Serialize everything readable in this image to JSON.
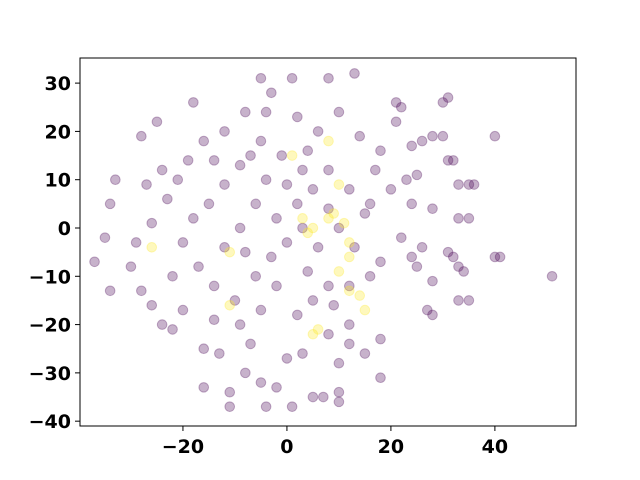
{
  "chart_data": {
    "type": "scatter",
    "xlim": [
      -39.8,
      55.6
    ],
    "ylim": [
      -41.0,
      35.2
    ],
    "xticks": [
      {
        "value": -20,
        "label": "−20"
      },
      0,
      20,
      40
    ],
    "yticks": [
      {
        "value": -40,
        "label": "−40"
      },
      {
        "value": -30,
        "label": "−30"
      },
      {
        "value": -20,
        "label": "−20"
      },
      {
        "value": -10,
        "label": "−10"
      },
      0,
      10,
      20,
      30
    ],
    "grid": false,
    "series": [
      {
        "color": "#440154",
        "x": [
          51,
          40,
          40,
          41,
          33,
          34,
          33,
          35,
          28,
          27,
          28,
          33,
          35,
          36,
          33,
          35,
          31,
          32,
          31,
          30,
          28,
          30,
          26,
          24,
          21,
          22,
          21,
          25,
          23,
          24,
          28,
          24,
          25,
          26,
          31,
          32,
          18,
          18,
          10,
          10,
          5,
          7,
          1,
          -2,
          -4,
          -11,
          -11,
          -16,
          -16,
          -13,
          -8,
          -5,
          13,
          8,
          1,
          -5,
          -3,
          -18,
          -25,
          -28,
          -33,
          -34,
          -35,
          -37,
          -34,
          -30,
          -28,
          -26,
          -24,
          -22,
          -20,
          -14,
          -9,
          -5,
          2,
          5,
          8,
          12,
          12,
          15,
          12,
          8,
          -7,
          0,
          3,
          10,
          -29,
          -26,
          -23,
          -21,
          -19,
          -16,
          -12,
          -8,
          -4,
          2,
          6,
          10,
          14,
          17,
          20,
          22,
          18,
          16,
          13,
          10,
          8,
          5,
          3,
          -1,
          -5,
          -9,
          -12,
          -15,
          -18,
          -20,
          -17,
          -14,
          -10,
          -6,
          -3,
          0,
          3,
          6,
          2,
          -2,
          -6,
          -9,
          -12,
          -4,
          0,
          4,
          8,
          12,
          15,
          18,
          -24,
          -22,
          -8,
          -2,
          4,
          -7,
          -14,
          -27,
          9,
          16
        ],
        "values": [
          -10,
          19,
          -6,
          -6,
          -8,
          -9,
          -15,
          -15,
          -18,
          -17,
          -11,
          9,
          9,
          9,
          2,
          2,
          14,
          14,
          27,
          26,
          19,
          19,
          18,
          17,
          26,
          25,
          22,
          11,
          10,
          5,
          4,
          -6,
          -8,
          -4,
          -5,
          -6,
          -31,
          -23,
          -34,
          -36,
          -35,
          -35,
          -37,
          -33,
          -37,
          -37,
          -34,
          -33,
          -25,
          -26,
          -30,
          -32,
          32,
          31,
          31,
          31,
          28,
          26,
          22,
          19,
          10,
          5,
          -2,
          -7,
          -13,
          -8,
          -13,
          -16,
          -20,
          -21,
          -17,
          -19,
          -20,
          -17,
          -18,
          -15,
          -12,
          -12,
          -20,
          -26,
          -24,
          -22,
          -24,
          -27,
          -26,
          -28,
          -3,
          1,
          6,
          10,
          14,
          18,
          20,
          24,
          24,
          23,
          20,
          24,
          19,
          12,
          8,
          -2,
          -7,
          -10,
          -4,
          0,
          4,
          8,
          12,
          15,
          18,
          13,
          9,
          5,
          2,
          -3,
          -8,
          -12,
          -15,
          -10,
          -6,
          -3,
          0,
          -4,
          5,
          2,
          5,
          0,
          -4,
          10,
          9,
          16,
          12,
          8,
          3,
          16,
          12,
          -10,
          -5,
          -12,
          -9,
          15,
          14,
          9,
          -16,
          5
        ]
      },
      {
        "color": "#fde725",
        "x": [
          1,
          8,
          9,
          11,
          4,
          5,
          12,
          10,
          12,
          14,
          15,
          6,
          5,
          -11,
          -11,
          -26,
          3,
          10,
          12,
          8
        ],
        "values": [
          15,
          2,
          3,
          1,
          -1,
          0,
          -3,
          -9,
          -13,
          -14,
          -17,
          -21,
          -22,
          -16,
          -5,
          -4,
          2,
          9,
          -6,
          18
        ]
      }
    ]
  }
}
